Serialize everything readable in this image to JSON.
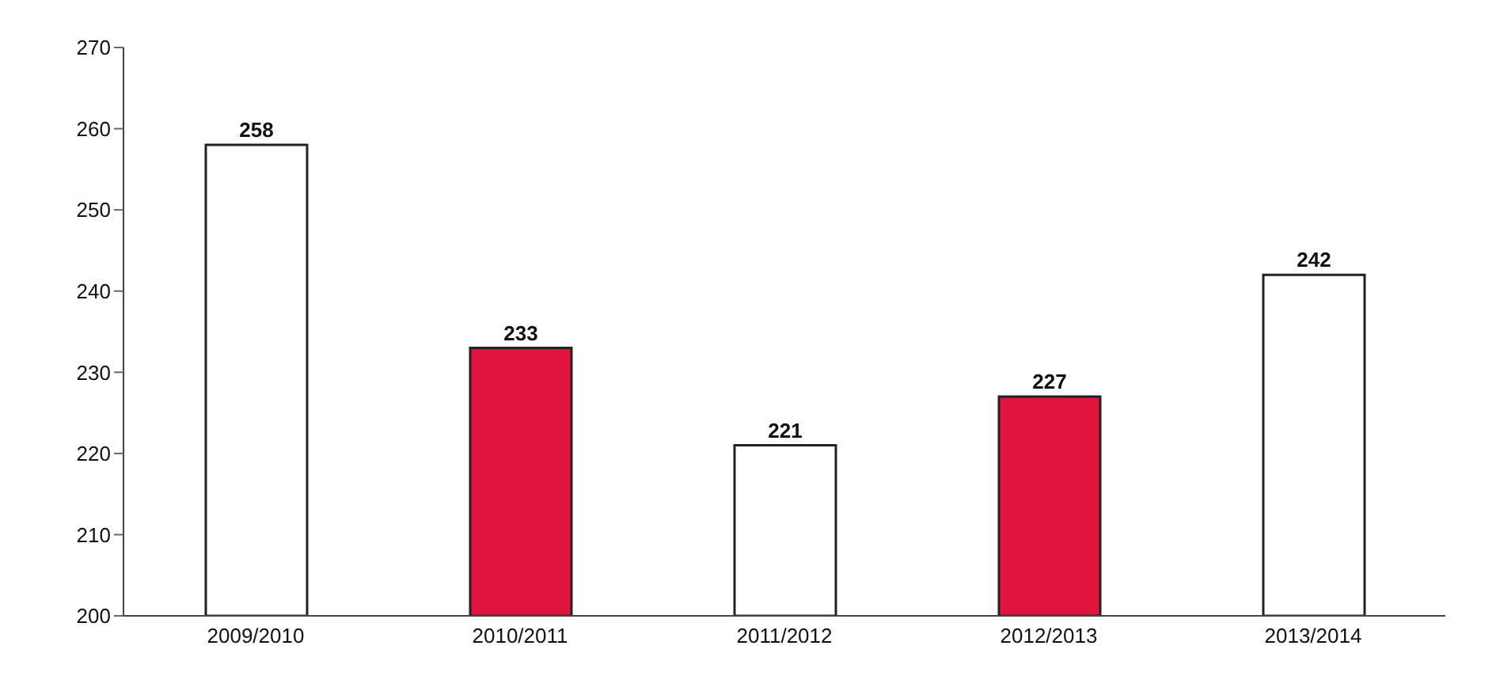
{
  "chart_data": {
    "type": "bar",
    "categories": [
      "2009/2010",
      "2010/2011",
      "2011/2012",
      "2012/2013",
      "2013/2014"
    ],
    "values": [
      258,
      233,
      221,
      227,
      242
    ],
    "colors": [
      "#ffffff",
      "#e0143c",
      "#ffffff",
      "#e0143c",
      "#ffffff"
    ],
    "ylim": [
      200,
      270
    ],
    "yticks": [
      200,
      210,
      220,
      230,
      240,
      250,
      260,
      270
    ],
    "data_labels": true
  }
}
